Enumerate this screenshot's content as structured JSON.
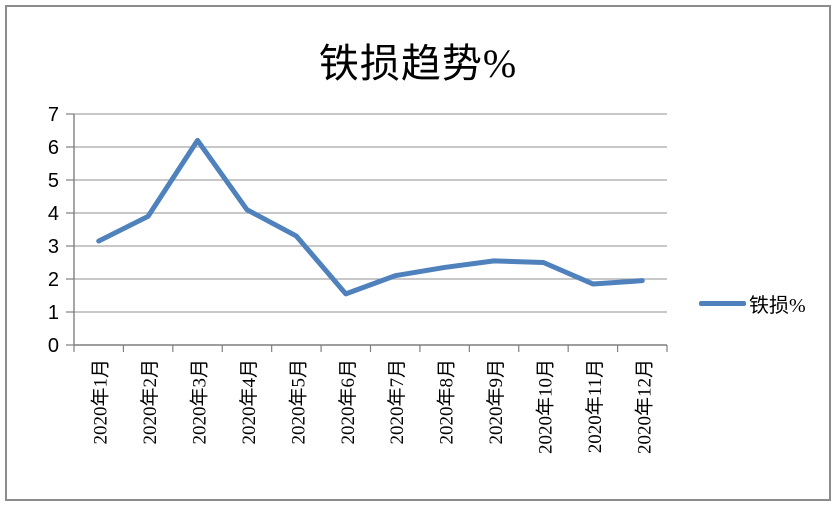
{
  "chart_data": {
    "type": "line",
    "title": "铁损趋势%",
    "categories": [
      "2020年1月",
      "2020年2月",
      "2020年3月",
      "2020年4月",
      "2020年5月",
      "2020年6月",
      "2020年7月",
      "2020年8月",
      "2020年9月",
      "2020年10月",
      "2020年11月",
      "2020年12月"
    ],
    "series": [
      {
        "name": "铁损%",
        "values": [
          3.15,
          3.9,
          6.2,
          4.1,
          3.3,
          1.55,
          2.1,
          2.35,
          2.55,
          2.5,
          1.85,
          1.95
        ]
      }
    ],
    "xlabel": "",
    "ylabel": "",
    "ylim": [
      0,
      7
    ],
    "yticks": [
      0,
      1,
      2,
      3,
      4,
      5,
      6,
      7
    ],
    "grid": true,
    "legend_position": "right",
    "colors": {
      "line": "#4F81BD",
      "gridline": "#A6A6A6",
      "axis": "#7F7F7F",
      "text": "#000000",
      "frame_border": "#8C8C8C"
    }
  }
}
